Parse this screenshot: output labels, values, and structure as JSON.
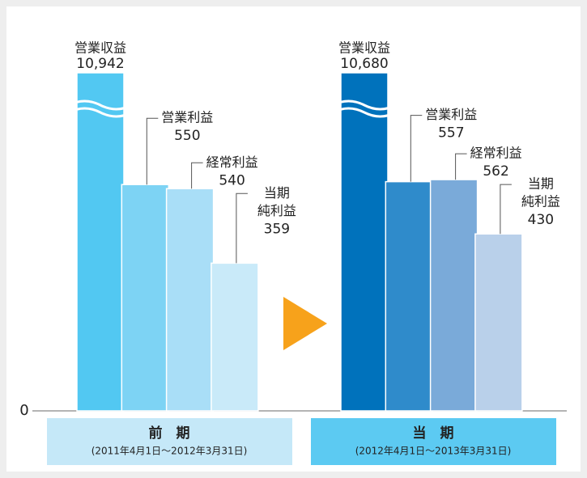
{
  "chart_data": {
    "type": "bar",
    "categories": [
      "前　期",
      "当　期"
    ],
    "category_periods": [
      "(2011年4月1日～2012年3月31日)",
      "(2012年4月1日～2013年3月31日)"
    ],
    "category_colors": [
      "#c5e8f8",
      "#5ccaf2"
    ],
    "series": [
      {
        "name": [
          "営業収益"
        ],
        "colors": [
          "#52c8f2",
          "#0072bc"
        ],
        "values": [
          10942,
          10680
        ],
        "value_labels": [
          "10,942",
          "10,680"
        ]
      },
      {
        "name": [
          "営業利益"
        ],
        "colors": [
          "#7dd3f4",
          "#2f8bcb"
        ],
        "values": [
          550,
          557
        ]
      },
      {
        "name": [
          "経常利益"
        ],
        "colors": [
          "#a9def7",
          "#7aaad9"
        ],
        "values": [
          540,
          562
        ]
      },
      {
        "name": [
          "当期",
          "純利益"
        ],
        "colors": [
          "#c9eaf9",
          "#b9d0ea"
        ],
        "values": [
          359,
          430
        ]
      }
    ],
    "ylim": [
      0,
      800
    ],
    "yticks": [
      0
    ],
    "axis_break": true
  }
}
